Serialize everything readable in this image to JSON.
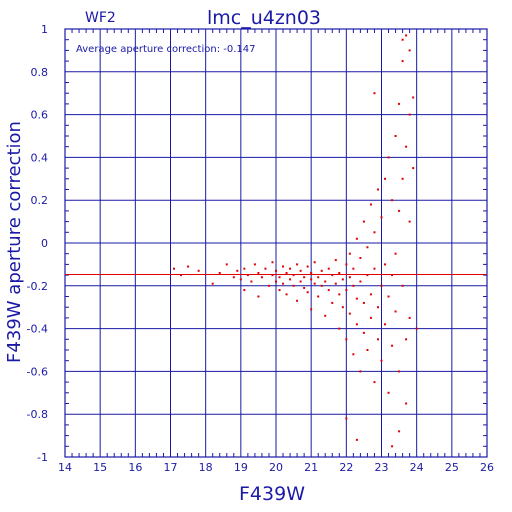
{
  "chart_data": {
    "type": "scatter",
    "panel_label": "WF2",
    "title": "lmc_u4zn03",
    "annotation": "Average aperture correction: -0.147",
    "xlabel": "F439W",
    "ylabel": "F439W aperture correction",
    "xlim": [
      14,
      26
    ],
    "ylim": [
      -1,
      1
    ],
    "xticks": [
      14,
      15,
      16,
      17,
      18,
      19,
      20,
      21,
      22,
      23,
      24,
      25,
      26
    ],
    "yticks": [
      -1,
      -0.8,
      -0.6,
      -0.4,
      -0.2,
      0,
      0.2,
      0.4,
      0.6,
      0.8,
      1
    ],
    "xtick_labels": [
      "14",
      "15",
      "16",
      "17",
      "18",
      "19",
      "20",
      "21",
      "22",
      "23",
      "24",
      "25",
      "26"
    ],
    "ytick_labels": [
      "-1",
      "-0.8",
      "-0.6",
      "-0.4",
      "-0.2",
      "0",
      "0.2",
      "0.4",
      "0.6",
      "0.8",
      "1"
    ],
    "grid": true,
    "reference_line": {
      "y": -0.147,
      "color": "#e00000"
    },
    "colors": {
      "axes": "#1a1aa6",
      "points": "#e00000",
      "text": "#1a1aa6"
    },
    "series": [
      {
        "points": [
          [
            17.1,
            -0.12
          ],
          [
            17.3,
            -0.15
          ],
          [
            17.5,
            -0.11
          ],
          [
            17.8,
            -0.13
          ],
          [
            18.2,
            -0.19
          ],
          [
            18.4,
            -0.14
          ],
          [
            18.6,
            -0.1
          ],
          [
            18.8,
            -0.16
          ],
          [
            18.9,
            -0.13
          ],
          [
            19.0,
            -0.17
          ],
          [
            19.1,
            -0.12
          ],
          [
            19.1,
            -0.22
          ],
          [
            19.2,
            -0.15
          ],
          [
            19.3,
            -0.18
          ],
          [
            19.4,
            -0.1
          ],
          [
            19.5,
            -0.14
          ],
          [
            19.5,
            -0.25
          ],
          [
            19.6,
            -0.16
          ],
          [
            19.7,
            -0.12
          ],
          [
            19.8,
            -0.2
          ],
          [
            19.9,
            -0.15
          ],
          [
            19.9,
            -0.09
          ],
          [
            20.0,
            -0.18
          ],
          [
            20.0,
            -0.13
          ],
          [
            20.1,
            -0.22
          ],
          [
            20.1,
            -0.16
          ],
          [
            20.2,
            -0.11
          ],
          [
            20.2,
            -0.19
          ],
          [
            20.3,
            -0.14
          ],
          [
            20.3,
            -0.24
          ],
          [
            20.4,
            -0.17
          ],
          [
            20.4,
            -0.12
          ],
          [
            20.5,
            -0.2
          ],
          [
            20.5,
            -0.15
          ],
          [
            20.6,
            -0.1
          ],
          [
            20.6,
            -0.27
          ],
          [
            20.7,
            -0.18
          ],
          [
            20.7,
            -0.13
          ],
          [
            20.8,
            -0.21
          ],
          [
            20.8,
            -0.16
          ],
          [
            20.9,
            -0.23
          ],
          [
            20.9,
            -0.11
          ],
          [
            21.0,
            -0.17
          ],
          [
            21.0,
            -0.14
          ],
          [
            21.0,
            -0.31
          ],
          [
            21.1,
            -0.19
          ],
          [
            21.1,
            -0.09
          ],
          [
            21.2,
            -0.16
          ],
          [
            21.2,
            -0.25
          ],
          [
            21.3,
            -0.13
          ],
          [
            21.3,
            -0.2
          ],
          [
            21.4,
            -0.18
          ],
          [
            21.4,
            -0.34
          ],
          [
            21.5,
            -0.12
          ],
          [
            21.5,
            -0.22
          ],
          [
            21.6,
            -0.15
          ],
          [
            21.6,
            -0.28
          ],
          [
            21.7,
            -0.19
          ],
          [
            21.7,
            -0.08
          ],
          [
            21.8,
            -0.24
          ],
          [
            21.8,
            -0.14
          ],
          [
            21.8,
            -0.4
          ],
          [
            21.9,
            -0.17
          ],
          [
            21.9,
            -0.3
          ],
          [
            22.0,
            -0.1
          ],
          [
            22.0,
            -0.22
          ],
          [
            22.0,
            -0.45
          ],
          [
            22.1,
            -0.16
          ],
          [
            22.1,
            -0.05
          ],
          [
            22.1,
            -0.33
          ],
          [
            22.2,
            -0.2
          ],
          [
            22.2,
            -0.12
          ],
          [
            22.2,
            -0.52
          ],
          [
            22.3,
            -0.26
          ],
          [
            22.3,
            0.02
          ],
          [
            22.3,
            -0.38
          ],
          [
            22.4,
            -0.18
          ],
          [
            22.4,
            -0.07
          ],
          [
            22.4,
            -0.6
          ],
          [
            22.5,
            -0.28
          ],
          [
            22.5,
            0.1
          ],
          [
            22.5,
            -0.42
          ],
          [
            22.6,
            -0.15
          ],
          [
            22.6,
            -0.02
          ],
          [
            22.6,
            -0.5
          ],
          [
            22.7,
            -0.24
          ],
          [
            22.7,
            0.18
          ],
          [
            22.7,
            -0.35
          ],
          [
            22.8,
            -0.12
          ],
          [
            22.8,
            0.05
          ],
          [
            22.8,
            -0.65
          ],
          [
            22.9,
            -0.3
          ],
          [
            22.9,
            0.25
          ],
          [
            22.9,
            -0.45
          ],
          [
            23.0,
            -0.2
          ],
          [
            23.0,
            0.12
          ],
          [
            23.0,
            -0.55
          ],
          [
            23.1,
            -0.1
          ],
          [
            23.1,
            0.3
          ],
          [
            23.1,
            -0.38
          ],
          [
            23.2,
            -0.25
          ],
          [
            23.2,
            0.4
          ],
          [
            23.2,
            -0.7
          ],
          [
            23.3,
            -0.15
          ],
          [
            23.3,
            0.2
          ],
          [
            23.3,
            -0.48
          ],
          [
            23.4,
            -0.05
          ],
          [
            23.4,
            0.5
          ],
          [
            23.4,
            -0.32
          ],
          [
            23.5,
            0.15
          ],
          [
            23.5,
            0.65
          ],
          [
            23.5,
            -0.6
          ],
          [
            23.6,
            0.3
          ],
          [
            23.6,
            0.85
          ],
          [
            23.6,
            -0.2
          ],
          [
            23.7,
            0.45
          ],
          [
            23.7,
            0.97
          ],
          [
            23.7,
            -0.45
          ],
          [
            23.8,
            0.6
          ],
          [
            23.8,
            0.9
          ],
          [
            23.8,
            0.1
          ],
          [
            23.3,
            -0.95
          ],
          [
            23.5,
            -0.88
          ],
          [
            22.3,
            -0.92
          ],
          [
            22.0,
            -0.82
          ],
          [
            23.7,
            -0.75
          ],
          [
            22.8,
            0.7
          ],
          [
            23.8,
            -0.35
          ],
          [
            23.9,
            0.35
          ],
          [
            23.9,
            0.68
          ],
          [
            23.6,
            0.95
          ],
          [
            24.0,
            -0.4
          ]
        ]
      }
    ]
  }
}
